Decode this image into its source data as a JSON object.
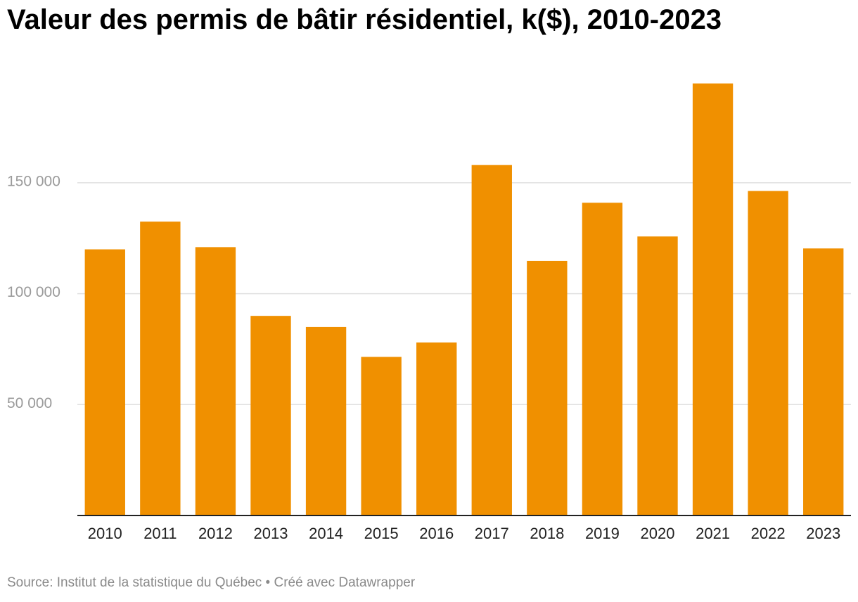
{
  "title": "Valeur des permis de bâtir résidentiel, k($), 2010-2023",
  "footer": {
    "source": "Source: Institut de la statistique du Québec",
    "separator": " • ",
    "credit": "Créé avec Datawrapper"
  },
  "colors": {
    "bar": "#f09000",
    "grid": "#e0e0e0",
    "axis": "#222222",
    "tick_text": "#9a9a9a",
    "label_text": "#222222"
  },
  "chart_data": {
    "type": "bar",
    "title": "Valeur des permis de bâtir résidentiel, k($), 2010-2023",
    "categories": [
      "2010",
      "2011",
      "2012",
      "2013",
      "2014",
      "2015",
      "2016",
      "2017",
      "2018",
      "2019",
      "2020",
      "2021",
      "2022",
      "2023"
    ],
    "values": [
      120000,
      132500,
      121000,
      90000,
      85000,
      71500,
      78000,
      158000,
      114800,
      141000,
      125800,
      194800,
      146300,
      120400
    ],
    "ylim": [
      0,
      195000
    ],
    "yticks": [
      50000,
      100000,
      150000
    ],
    "ytick_labels": [
      "50 000",
      "100 000",
      "150 000"
    ],
    "grid": true,
    "legend": "none",
    "xlabel": "",
    "ylabel": ""
  }
}
